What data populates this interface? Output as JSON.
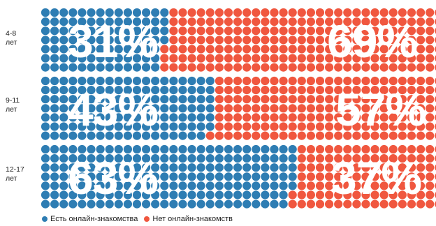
{
  "colors": {
    "online": "#2e7db3",
    "offline": "#f0573f"
  },
  "legend": [
    {
      "label": "Есть онлайн-знакомства",
      "color": "#2e7db3"
    },
    {
      "label": "Нет онлайн-знакомств",
      "color": "#f0573f"
    }
  ],
  "chart_data": {
    "type": "bar",
    "subtype": "stacked dot matrix (100%)",
    "categories": [
      "4-8 лет",
      "9-11 лет",
      "12-17 лет"
    ],
    "series": [
      {
        "name": "Есть онлайн-знакомства",
        "values": [
          31,
          43,
          63
        ]
      },
      {
        "name": "Нет онлайн-знакомств",
        "values": [
          69,
          57,
          37
        ]
      }
    ],
    "value_labels": [
      {
        "online": "31%",
        "offline": "69%"
      },
      {
        "online": "43%",
        "offline": "57%"
      },
      {
        "online": "63%",
        "offline": "37%"
      }
    ],
    "rows": [
      {
        "label_lines": [
          "4-8",
          "лет"
        ]
      },
      {
        "label_lines": [
          "9-11",
          "лет"
        ]
      },
      {
        "label_lines": [
          "12-17",
          "лет"
        ]
      }
    ],
    "legend_position": "bottom-left"
  }
}
